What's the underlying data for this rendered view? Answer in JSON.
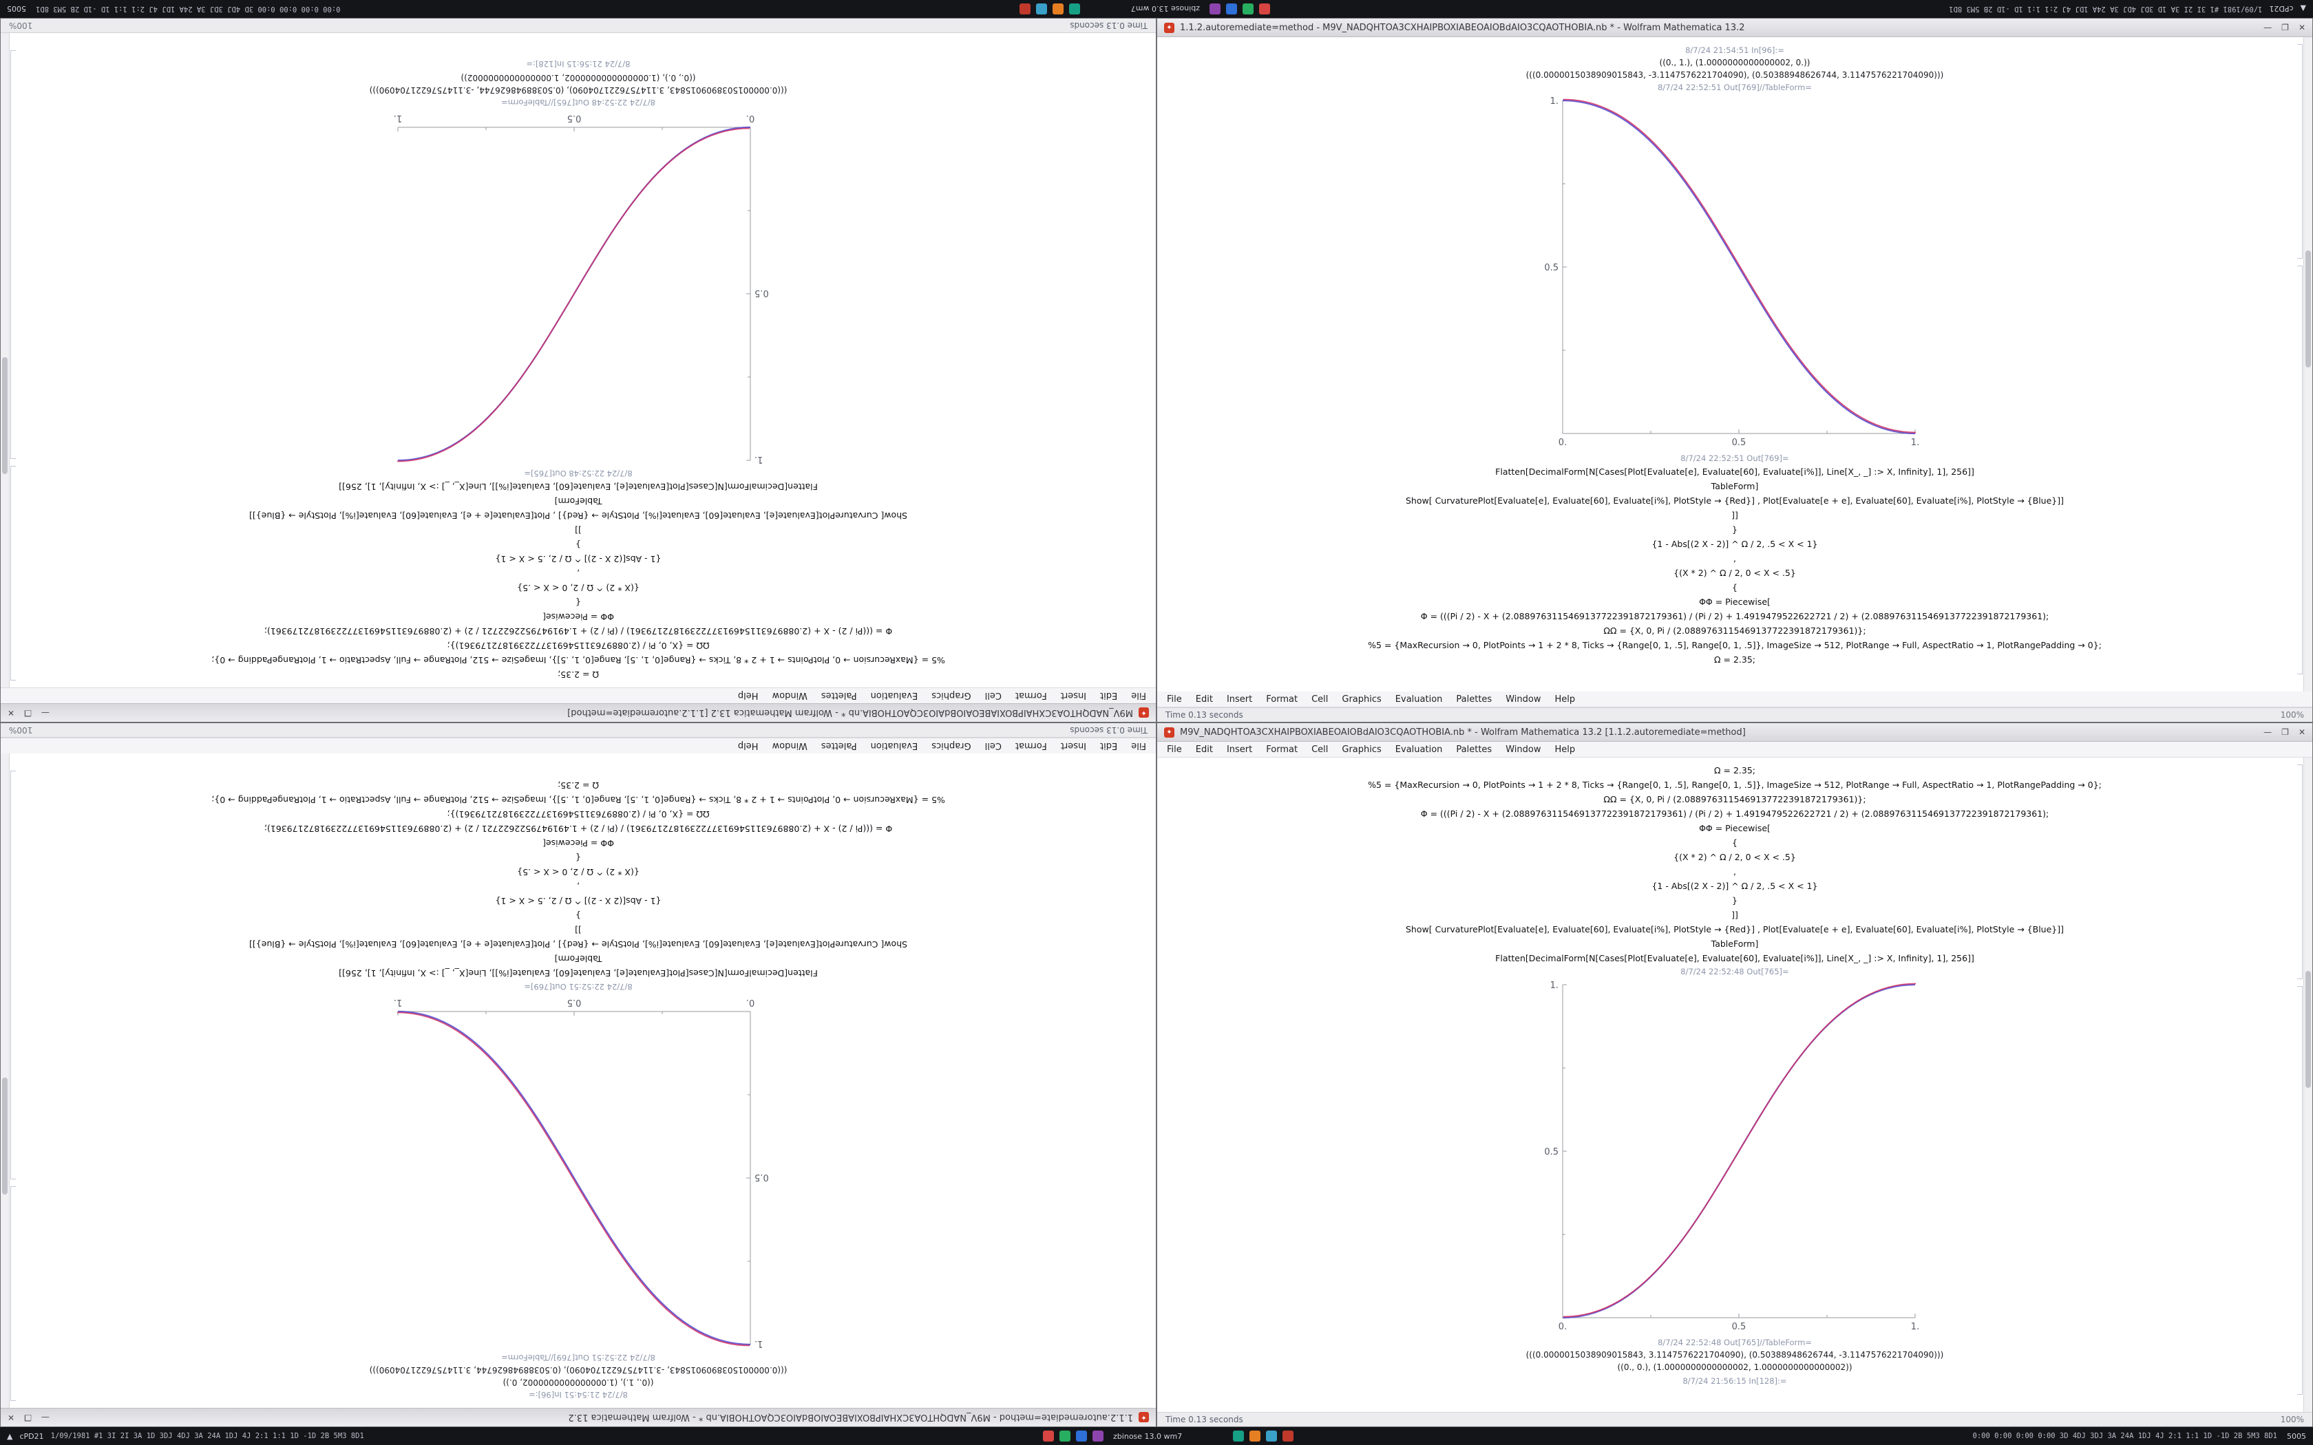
{
  "menu": [
    "File",
    "Edit",
    "Insert",
    "Format",
    "Cell",
    "Graphics",
    "Evaluation",
    "Palettes",
    "Window",
    "Help"
  ],
  "window_controls": {
    "minimize": "—",
    "maximize": "❐",
    "close": "✕"
  },
  "colors": {
    "curve_red": "#cf2e63",
    "curve_blue": "#5a4fcf",
    "axis": "#9a9aa0",
    "app_icon": "#d43b24",
    "taskbar_bg": "#141519"
  },
  "taskbar": {
    "left_icon": "▲",
    "left_label": "cPD21",
    "left_stats": "1/09/1981 #1 3I 2I 3A 1D 3DJ 4DJ 3A 24A 1DJ 4J 2:1 1:1 1D -1D 2B 5M3 8D1",
    "center_label": "zbinose 13.0 wm7",
    "right_stats": "0:00 0:00 0:00 0:00 3D 4DJ 3DJ 3A 24A 1DJ 4J 2:1 1:1 1D -1D 2B 5M3 8D1",
    "right_label": "5005",
    "app_icon_colors": [
      "#d64541",
      "#27ae60",
      "#2e6fd8",
      "#8e44ad",
      "#16a085",
      "#e67e22",
      "#3aa0c8",
      "#c0392b"
    ]
  },
  "windows": {
    "right": {
      "title": "M9V_NADQHTOA3CXHAIPBOXIABEOAIOBdAIO3CQAOTHOBIA.nb * - Wolfram Mathematica 13.2 [1.1.2.autoremediate=method]",
      "status": "Time 0.13 seconds",
      "zoom_label": "100%",
      "code": [
        "Ω = 2.35;",
        "%5 = {MaxRecursion → 0, PlotPoints → 1 + 2 * 8, Ticks → {Range[0, 1, .5], Range[0, 1, .5]}, ImageSize → 512, PlotRange → Full, AspectRatio → 1, PlotRangePadding → 0};",
        "ΩΩ = {X, 0, Pi / (2.0889763115469137722391872179361)};",
        "Φ = (((Pi / 2) - X + (2.0889763115469137722391872179361) / (Pi / 2) + 1.4919479522622721 / 2) + (2.0889763115469137722391872179361);",
        "ΦΦ = Piecewise[",
        "{",
        "{(X * 2) ^ Ω / 2, 0 < X < .5}",
        ",",
        "{1 - Abs[(2 X - 2)] ^ Ω / 2, .5 < X < 1}",
        "}",
        "]]",
        "Show[  CurvaturePlot[Evaluate[e], Evaluate[60], Evaluate[i%], PlotStyle → {Red}] ,  Plot[Evaluate[e + e], Evaluate[60], Evaluate[i%], PlotStyle → {Blue}]]",
        "TableForm]",
        "Flatten[DecimalForm[N[Cases[Plot[Evaluate[e], Evaluate[60], Evaluate[i%]], Line[X_, _] :> X, Infinity], 1], 256]]"
      ],
      "out_label": "8/7/24 22:52:48 Out[765]=",
      "table_label": "8/7/24 22:52:48 Out[765]//TableForm=",
      "rows": [
        "(((0.0000015038909015843, 3.1147576221704090), (0.50388948626744, -3.1147576221704090)))",
        "((0., 0.), (1.0000000000000002, 1.0000000000000002))"
      ],
      "footer": "8/7/24 21:56:15 In[128]:=",
      "plot_ticks": {
        "x0": "0.",
        "x1": "0.5",
        "x2": "1.",
        "y1": "0.5",
        "y2": "1."
      }
    },
    "left": {
      "title": "1.1.2.autoremediate=method - M9V_NADQHTOA3CXHAIPBOXIABEOAIOBdAIO3CQAOTHOBIA.nb * - Wolfram Mathematica 13.2",
      "status": "Time 0.13 seconds",
      "zoom_label": "100%",
      "footer": "8/7/24 21:54:51 In[96]:=",
      "rows": [
        "((0., 1.), (1.0000000000000002, 0.))",
        "(((0.0000015038909015843, -3.1147576221704090), (0.50388948626744, 3.1147576221704090)))"
      ],
      "table_label": "8/7/24 22:52:51 Out[769]//TableForm=",
      "out_label": "8/7/24 22:52:51 Out[769]=",
      "code": [
        "Flatten[DecimalForm[N[Cases[Plot[Evaluate[e], Evaluate[60], Evaluate[i%]], Line[X_, _] :> X, Infinity], 1], 256]]",
        "TableForm]",
        "Show[  CurvaturePlot[Evaluate[e], Evaluate[60], Evaluate[i%], PlotStyle → {Red}] ,  Plot[Evaluate[e + e], Evaluate[60], Evaluate[i%], PlotStyle → {Blue}]]",
        "]]",
        "}",
        "{1 - Abs[(2 X - 2)] ^ Ω / 2, .5 < X < 1}",
        ",",
        "{(X * 2) ^ Ω / 2, 0 < X < .5}",
        "{",
        "ΦΦ = Piecewise[",
        "Φ = (((Pi / 2) - X + (2.0889763115469137722391872179361) / (Pi / 2) + 1.4919479522622721 / 2) + (2.0889763115469137722391872179361);",
        "ΩΩ = {X, 0, Pi / (2.0889763115469137722391872179361)};",
        "%5 = {MaxRecursion → 0, PlotPoints → 1 + 2 * 8, Ticks → {Range[0, 1, .5], Range[0, 1, .5]}, ImageSize → 512, PlotRange → Full, AspectRatio → 1, PlotRangePadding → 0};",
        "Ω = 2.35;"
      ],
      "plot_ticks": {
        "x0": "0.",
        "x1": "0.5",
        "x2": "1.",
        "y1": "0.5",
        "y2": "1."
      }
    }
  },
  "chart_data": [
    {
      "type": "line",
      "title": "Out[765]= sigmoid easing curve (ascending)",
      "x": [
        0,
        0.1,
        0.2,
        0.3,
        0.4,
        0.5,
        0.6,
        0.7,
        0.8,
        0.9,
        1.0
      ],
      "series": [
        {
          "name": "CurvaturePlot (Red)",
          "values": [
            0,
            0.011,
            0.058,
            0.151,
            0.296,
            0.5,
            0.704,
            0.849,
            0.942,
            0.989,
            1.0
          ]
        },
        {
          "name": "Plot (Blue)",
          "values": [
            0,
            0.011,
            0.058,
            0.151,
            0.296,
            0.5,
            0.704,
            0.849,
            0.942,
            0.989,
            1.0
          ]
        }
      ],
      "xlabel": "",
      "ylabel": "",
      "xlim": [
        0,
        1
      ],
      "ylim": [
        0,
        1
      ],
      "xticks": [
        "0.",
        "0.5",
        "1."
      ],
      "yticks": [
        "0.5",
        "1."
      ],
      "grid": false,
      "legend": "none"
    },
    {
      "type": "line",
      "title": "Out[769]= sigmoid easing curve (descending)",
      "x": [
        0,
        0.1,
        0.2,
        0.3,
        0.4,
        0.5,
        0.6,
        0.7,
        0.8,
        0.9,
        1.0
      ],
      "series": [
        {
          "name": "CurvaturePlot (Red)",
          "values": [
            1.0,
            0.989,
            0.942,
            0.849,
            0.704,
            0.5,
            0.296,
            0.151,
            0.058,
            0.011,
            0
          ]
        },
        {
          "name": "Plot (Blue)",
          "values": [
            1.0,
            0.989,
            0.942,
            0.849,
            0.704,
            0.5,
            0.296,
            0.151,
            0.058,
            0.011,
            0
          ]
        }
      ],
      "xlabel": "",
      "ylabel": "",
      "xlim": [
        0,
        1
      ],
      "ylim": [
        0,
        1
      ],
      "xticks": [
        "0.",
        "0.5",
        "1."
      ],
      "yticks": [
        "0.5",
        "1."
      ],
      "grid": false,
      "legend": "none"
    }
  ]
}
